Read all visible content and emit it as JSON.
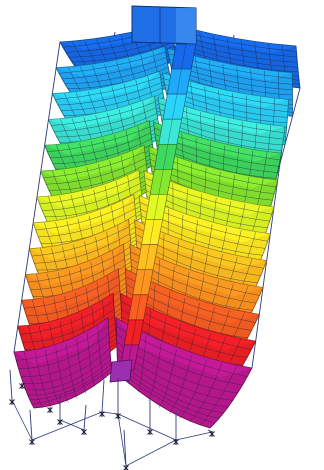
{
  "viewport": {
    "background": "#ffffff"
  },
  "model": {
    "description_type": "3D structural deformed-shape contour render",
    "floors": 13,
    "floor_colors": [
      "#1565e0",
      "#1ea0ee",
      "#29c8ee",
      "#38dccc",
      "#3ccf5a",
      "#7fdc2c",
      "#d4ee22",
      "#f5e020",
      "#f6b61e",
      "#f58d1d",
      "#ee5a1f",
      "#e51e24",
      "#b4178a"
    ],
    "frame_color": "#2c3a7a",
    "mesh_color": "#1b1f3a",
    "support_color": "#1b1f3a"
  }
}
